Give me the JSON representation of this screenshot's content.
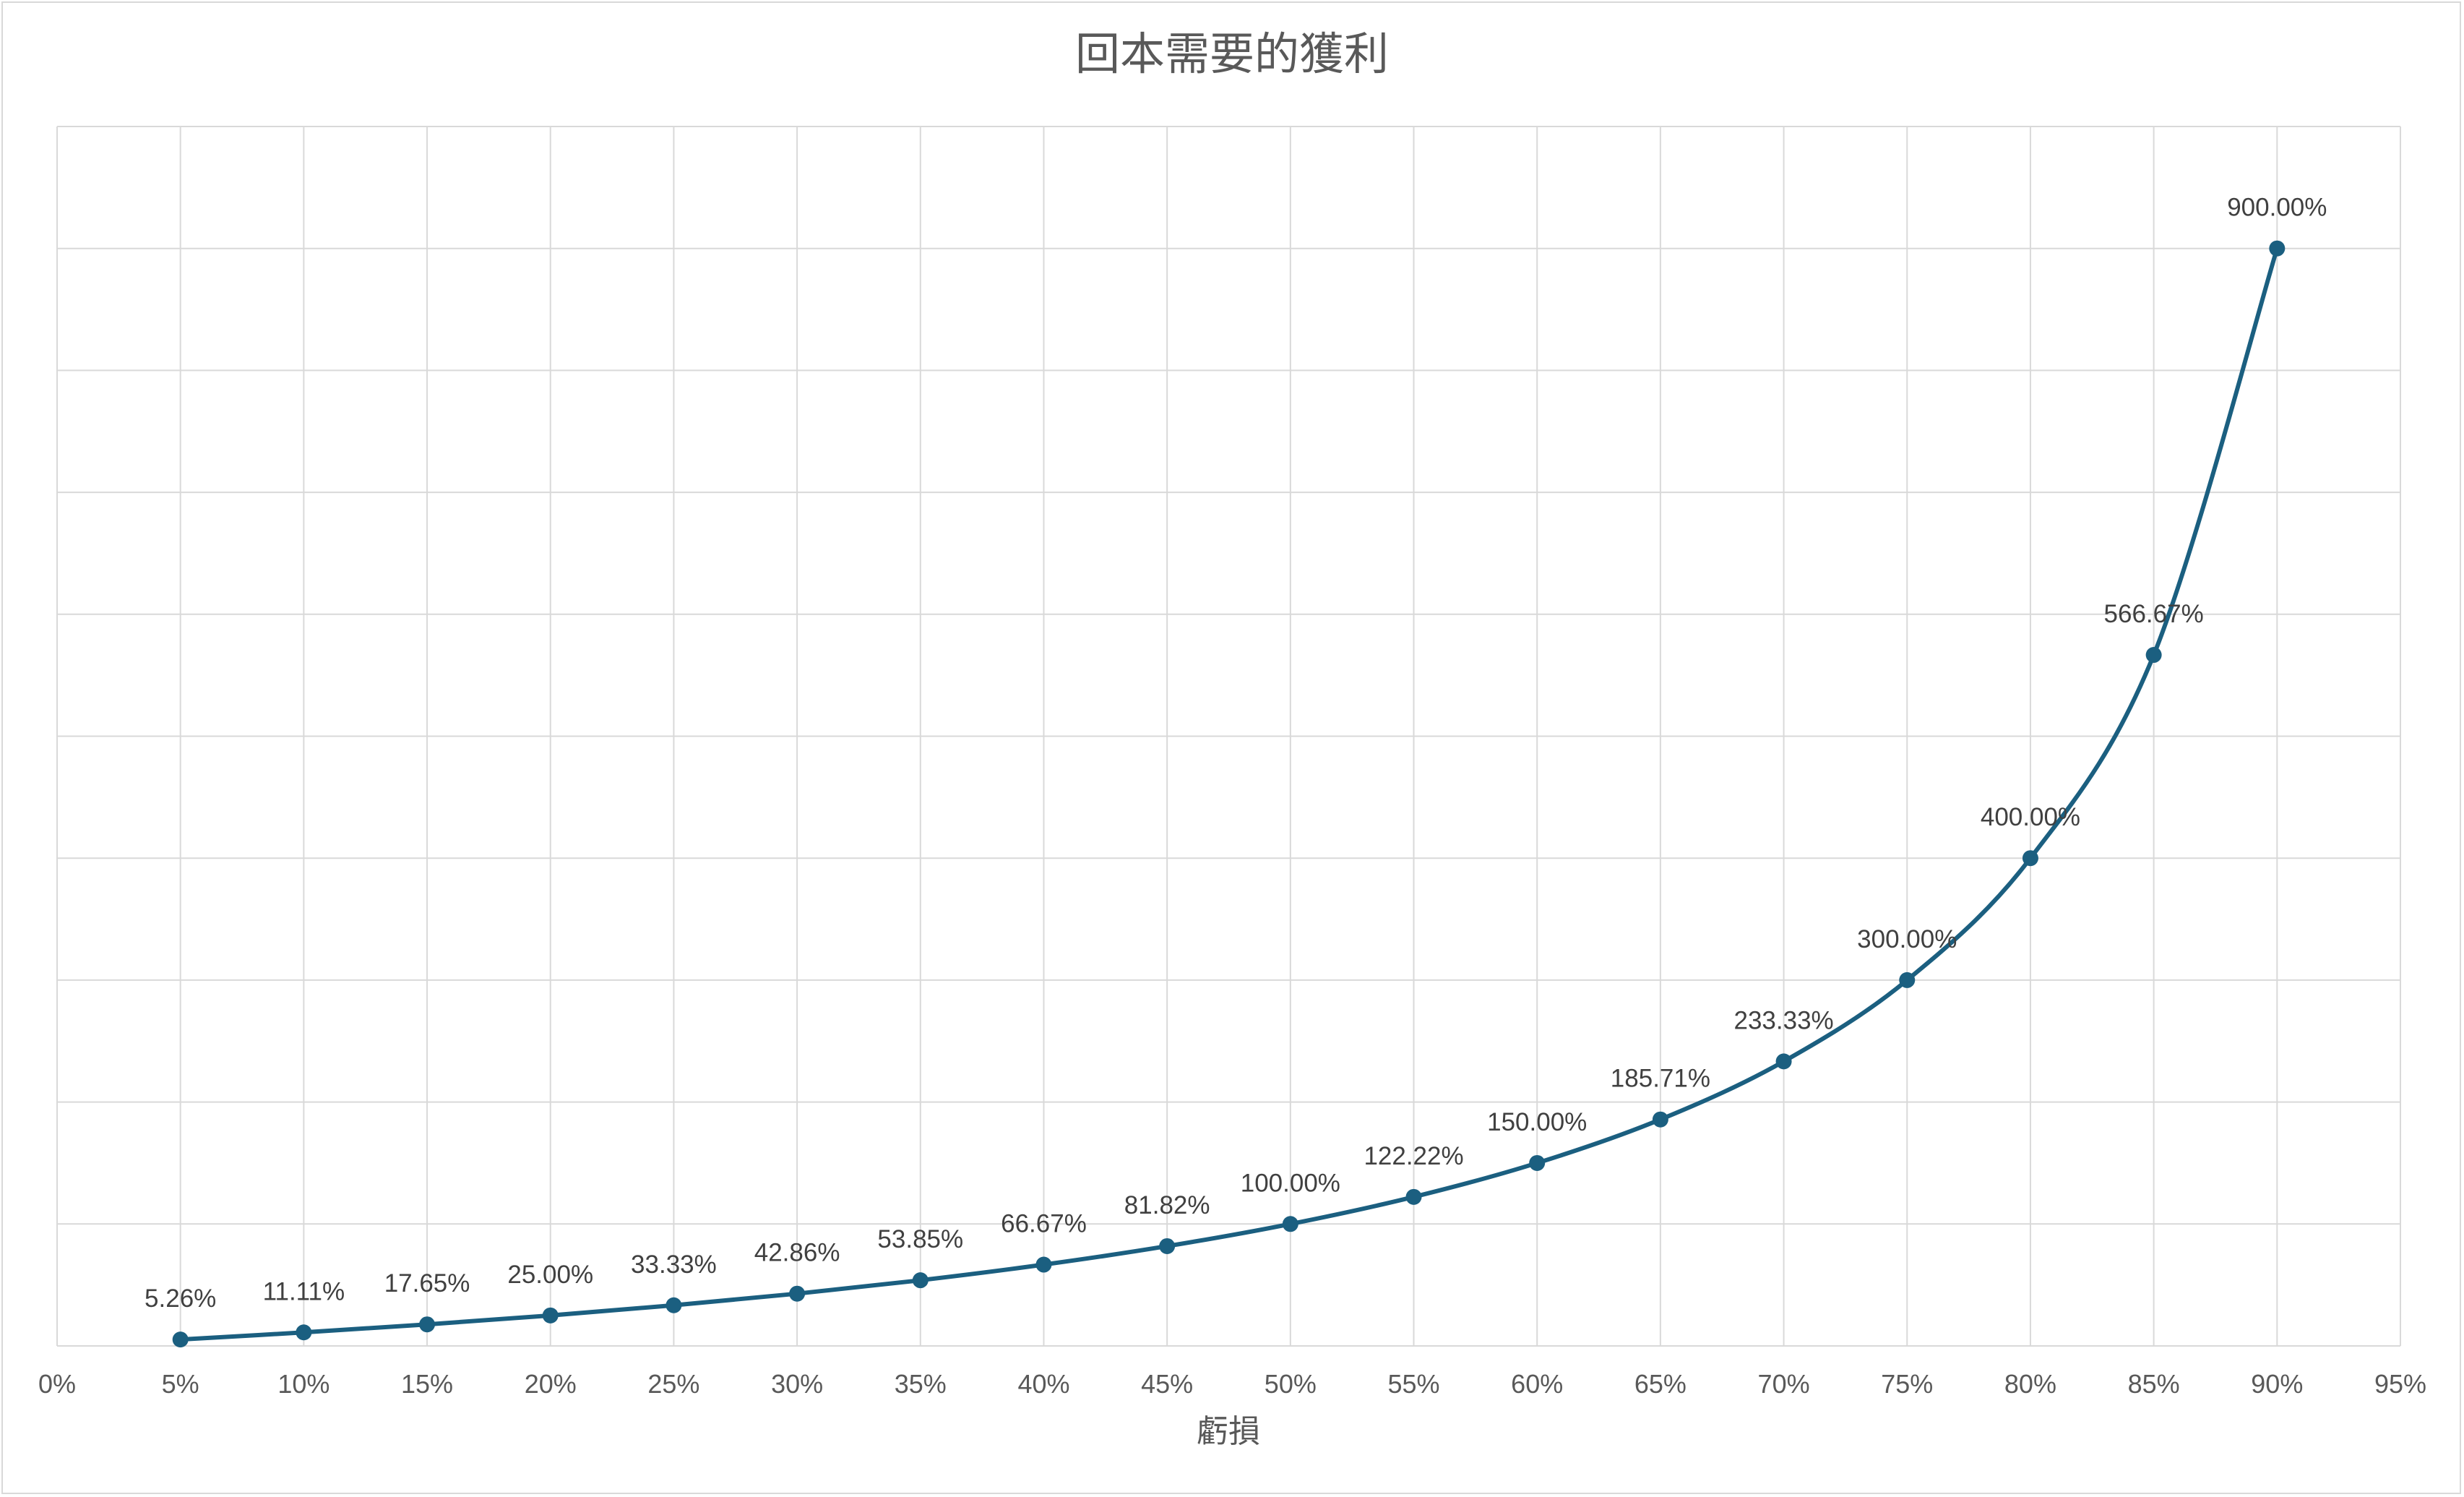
{
  "chart_data": {
    "type": "line",
    "title": "回本需要的獲利",
    "xlabel": "虧損",
    "ylabel": "",
    "x_ticks": [
      "0%",
      "5%",
      "10%",
      "15%",
      "20%",
      "25%",
      "30%",
      "35%",
      "40%",
      "45%",
      "50%",
      "55%",
      "60%",
      "65%",
      "70%",
      "75%",
      "80%",
      "85%",
      "90%",
      "95%"
    ],
    "xlim": [
      0,
      95
    ],
    "ylim": [
      0,
      1000
    ],
    "y_grid_step": 100,
    "y_tick_labels_shown": false,
    "grid": true,
    "legend": "none",
    "smoothed": true,
    "markers": true,
    "colors": {
      "line": "#1b5f80",
      "grid": "#d9d9d9",
      "text": "#595959"
    },
    "series": [
      {
        "x": [
          5,
          10,
          15,
          20,
          25,
          30,
          35,
          40,
          45,
          50,
          55,
          60,
          65,
          70,
          75,
          80,
          85,
          90
        ],
        "values": [
          5.26,
          11.11,
          17.65,
          25.0,
          33.33,
          42.86,
          53.85,
          66.67,
          81.82,
          100.0,
          122.22,
          150.0,
          185.71,
          233.33,
          300.0,
          400.0,
          566.67,
          900.0
        ],
        "labels": [
          "5.26%",
          "11.11%",
          "17.65%",
          "25.00%",
          "33.33%",
          "42.86%",
          "53.85%",
          "66.67%",
          "81.82%",
          "100.00%",
          "122.22%",
          "150.00%",
          "185.71%",
          "233.33%",
          "300.00%",
          "400.00%",
          "566.67%",
          "900.00%"
        ]
      }
    ]
  }
}
